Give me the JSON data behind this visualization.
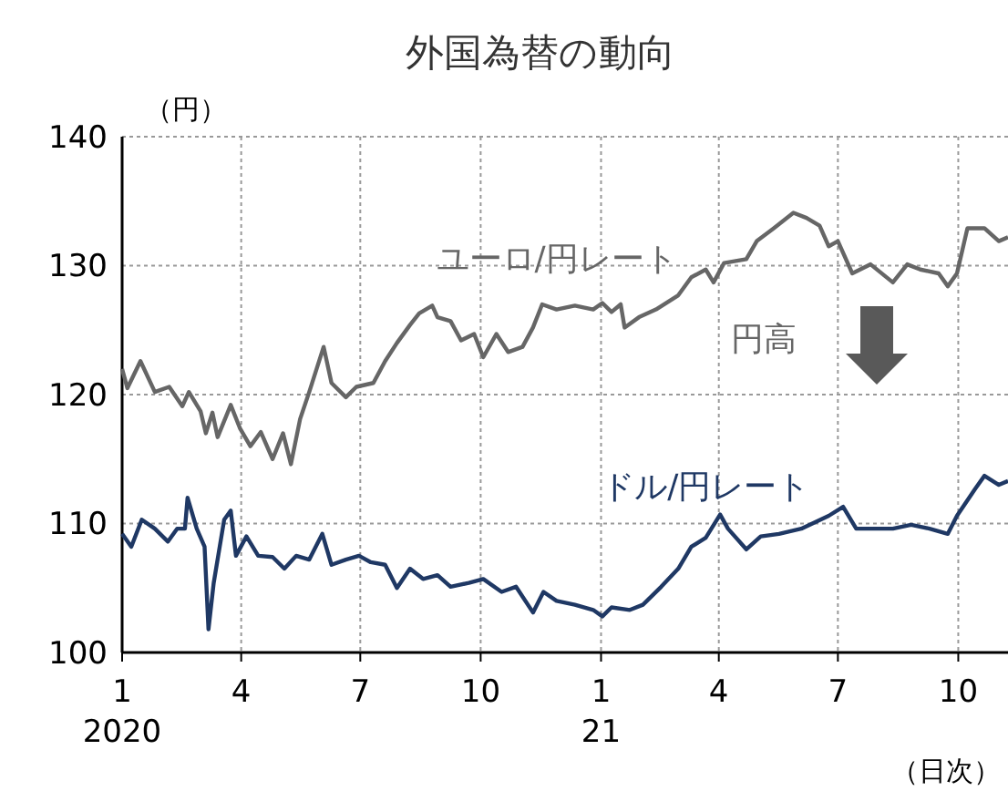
{
  "chart_data": {
    "type": "line",
    "title": "外国為替の動向",
    "ylabel": "（円）",
    "xlabel": "（日次）",
    "annotations": [
      "円高"
    ],
    "xlim": [
      "2020-01-01",
      "2021-11-08"
    ],
    "ylim": [
      100,
      140
    ],
    "yticks": [
      100,
      110,
      120,
      130,
      140
    ],
    "xticks": [
      {
        "value": "2020-01-01",
        "label": "1\n2020"
      },
      {
        "value": "2020-04-01",
        "label": "4"
      },
      {
        "value": "2020-07-01",
        "label": "7"
      },
      {
        "value": "2020-10-01",
        "label": "10"
      },
      {
        "value": "2021-01-01",
        "label": "1\n21"
      },
      {
        "value": "2021-04-01",
        "label": "4"
      },
      {
        "value": "2021-07-01",
        "label": "7"
      },
      {
        "value": "2021-10-01",
        "label": "10"
      }
    ],
    "grid": true,
    "line_style": "solid",
    "series": [
      {
        "name": "ユーロ/円レート",
        "color": "#666666",
        "x": [
          "2020-01-01",
          "2020-01-05",
          "2020-01-15",
          "2020-01-26",
          "2020-02-06",
          "2020-02-16",
          "2020-02-21",
          "2020-03-01",
          "2020-03-05",
          "2020-03-10",
          "2020-03-14",
          "2020-03-24",
          "2020-03-31",
          "2020-04-08",
          "2020-04-16",
          "2020-04-25",
          "2020-05-03",
          "2020-05-09",
          "2020-05-16",
          "2020-05-23",
          "2020-06-03",
          "2020-06-09",
          "2020-06-20",
          "2020-06-28",
          "2020-07-11",
          "2020-07-20",
          "2020-07-29",
          "2020-08-08",
          "2020-08-15",
          "2020-08-25",
          "2020-08-29",
          "2020-09-08",
          "2020-09-16",
          "2020-09-26",
          "2020-10-03",
          "2020-10-13",
          "2020-10-22",
          "2020-11-02",
          "2020-11-10",
          "2020-11-17",
          "2020-11-28",
          "2020-12-12",
          "2020-12-26",
          "2021-01-02",
          "2021-01-09",
          "2021-01-16",
          "2021-01-19",
          "2021-01-30",
          "2021-02-12",
          "2021-03-01",
          "2021-03-11",
          "2021-03-22",
          "2021-03-28",
          "2021-04-05",
          "2021-04-22",
          "2021-04-30",
          "2021-05-13",
          "2021-05-28",
          "2021-06-07",
          "2021-06-17",
          "2021-06-24",
          "2021-07-01",
          "2021-07-12",
          "2021-07-26",
          "2021-08-12",
          "2021-08-23",
          "2021-09-02",
          "2021-09-16",
          "2021-09-23",
          "2021-09-30",
          "2021-10-08",
          "2021-10-21",
          "2021-11-01",
          "2021-11-08"
        ],
        "values": [
          122.0,
          120.5,
          122.6,
          120.2,
          120.6,
          119.1,
          120.2,
          118.7,
          117.0,
          118.6,
          116.7,
          119.2,
          117.4,
          116.0,
          117.1,
          115.0,
          117.0,
          114.6,
          118.1,
          120.2,
          123.7,
          120.9,
          119.8,
          120.6,
          120.9,
          122.6,
          124.0,
          125.4,
          126.3,
          126.9,
          126.0,
          125.7,
          124.2,
          124.7,
          122.9,
          124.7,
          123.3,
          123.7,
          125.2,
          127.0,
          126.6,
          126.9,
          126.6,
          127.1,
          126.4,
          127.0,
          125.2,
          126.0,
          126.6,
          127.7,
          129.1,
          129.7,
          128.7,
          130.2,
          130.5,
          131.9,
          132.9,
          134.1,
          133.7,
          133.1,
          131.5,
          131.9,
          129.4,
          130.1,
          128.7,
          130.1,
          129.7,
          129.4,
          128.4,
          129.4,
          132.9,
          132.9,
          131.9,
          132.2
        ]
      },
      {
        "name": "ドル/円レート",
        "color": "#1f3864",
        "x": [
          "2020-01-01",
          "2020-01-08",
          "2020-01-16",
          "2020-01-26",
          "2020-02-05",
          "2020-02-12",
          "2020-02-18",
          "2020-02-20",
          "2020-02-27",
          "2020-03-04",
          "2020-03-07",
          "2020-03-11",
          "2020-03-19",
          "2020-03-24",
          "2020-03-28",
          "2020-04-05",
          "2020-04-14",
          "2020-04-25",
          "2020-05-04",
          "2020-05-13",
          "2020-05-23",
          "2020-06-02",
          "2020-06-09",
          "2020-06-20",
          "2020-06-30",
          "2020-07-09",
          "2020-07-20",
          "2020-07-29",
          "2020-08-08",
          "2020-08-18",
          "2020-08-29",
          "2020-09-08",
          "2020-09-22",
          "2020-10-03",
          "2020-10-17",
          "2020-10-28",
          "2020-11-10",
          "2020-11-18",
          "2020-11-28",
          "2020-12-12",
          "2020-12-26",
          "2021-01-02",
          "2021-01-09",
          "2021-01-23",
          "2021-02-02",
          "2021-02-16",
          "2021-03-01",
          "2021-03-11",
          "2021-03-22",
          "2021-04-02",
          "2021-04-08",
          "2021-04-22",
          "2021-05-03",
          "2021-05-17",
          "2021-06-03",
          "2021-06-24",
          "2021-07-05",
          "2021-07-15",
          "2021-07-29",
          "2021-08-12",
          "2021-08-26",
          "2021-09-09",
          "2021-09-23",
          "2021-09-30",
          "2021-10-14",
          "2021-10-21",
          "2021-11-01",
          "2021-11-08"
        ],
        "values": [
          109.2,
          108.2,
          110.3,
          109.6,
          108.6,
          109.6,
          109.6,
          112.0,
          109.6,
          108.2,
          101.8,
          105.4,
          110.3,
          111.0,
          107.5,
          109.0,
          107.5,
          107.4,
          106.5,
          107.5,
          107.2,
          109.2,
          106.8,
          107.2,
          107.5,
          107.0,
          106.8,
          105.0,
          106.5,
          105.7,
          106.0,
          105.1,
          105.4,
          105.7,
          104.7,
          105.1,
          103.1,
          104.7,
          104.0,
          103.7,
          103.3,
          102.8,
          103.5,
          103.3,
          103.7,
          105.1,
          106.5,
          108.2,
          108.9,
          110.7,
          109.6,
          108.0,
          109.0,
          109.2,
          109.6,
          110.6,
          111.3,
          109.6,
          109.6,
          109.6,
          109.9,
          109.6,
          109.2,
          110.6,
          112.7,
          113.7,
          113.0,
          113.3
        ]
      }
    ]
  }
}
